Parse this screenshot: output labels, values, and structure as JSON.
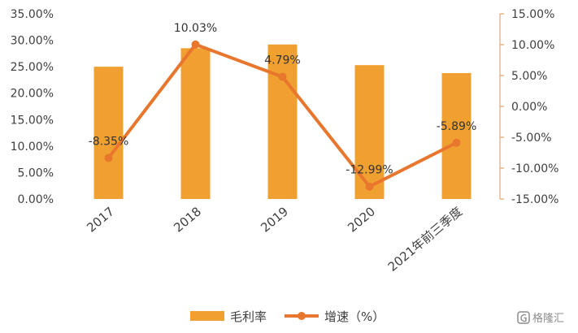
{
  "chart_data": {
    "type": "bar+line",
    "categories": [
      "2017",
      "2018",
      "2019",
      "2020",
      "2021年前三季度"
    ],
    "series": [
      {
        "name": "毛利率",
        "type": "bar",
        "axis": "left",
        "color": "#F0A030",
        "values": [
          25.0,
          28.5,
          29.2,
          25.3,
          23.8
        ]
      },
      {
        "name": "增速（%）",
        "type": "line",
        "axis": "right",
        "color": "#E8762D",
        "values": [
          -8.35,
          10.03,
          4.79,
          -12.99,
          -5.89
        ]
      }
    ],
    "data_labels": [
      "-8.35%",
      "10.03%",
      "4.79%",
      "-12.99%",
      "-5.89%"
    ],
    "left_axis": {
      "ylim": [
        0,
        35
      ],
      "ticks": [
        "0.00%",
        "5.00%",
        "10.00%",
        "15.00%",
        "20.00%",
        "25.00%",
        "30.00%",
        "35.00%"
      ]
    },
    "right_axis": {
      "ylim": [
        -15,
        15
      ],
      "ticks": [
        "-15.00%",
        "-10.00%",
        "-5.00%",
        "0.00%",
        "5.00%",
        "10.00%",
        "15.00%"
      ]
    },
    "grid": false,
    "legend_position": "bottom"
  },
  "watermark": {
    "icon": "gelonghui-logo-icon",
    "text": "格隆汇"
  }
}
